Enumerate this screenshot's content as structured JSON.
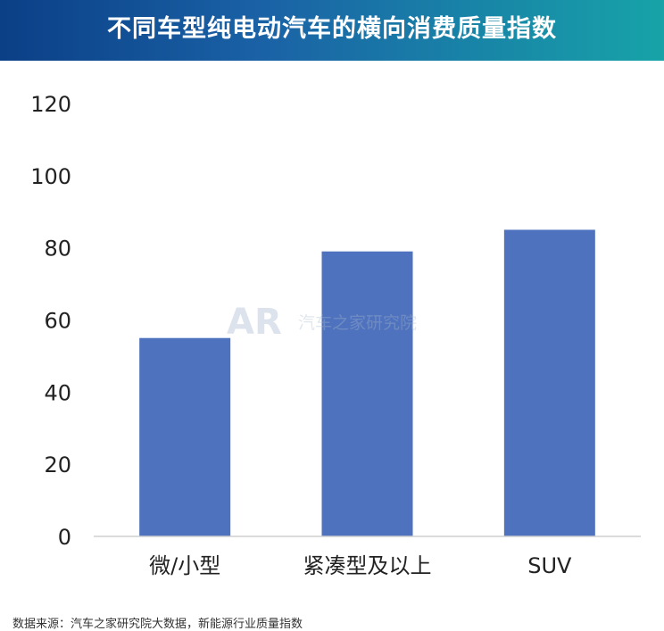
{
  "header": {
    "title": "不同车型纯电动汽车的横向消费质量指数"
  },
  "watermark": {
    "logo_text": "AR",
    "brand": "汽车之家研究院"
  },
  "footnote": "数据来源：汽车之家研究院大数据，新能源行业质量指数",
  "chart_data": {
    "type": "bar",
    "title": "不同车型纯电动汽车的横向消费质量指数",
    "categories": [
      "微/小型",
      "紧凑型及以上",
      "SUV"
    ],
    "values": [
      55,
      79,
      85
    ],
    "ylim": [
      0,
      120
    ],
    "yticks": [
      0,
      20,
      40,
      60,
      80,
      100,
      120
    ],
    "xlabel": "",
    "ylabel": "",
    "grid": false,
    "colors": {
      "bar": "#4f72be",
      "axis": "#cfcfcf"
    }
  }
}
